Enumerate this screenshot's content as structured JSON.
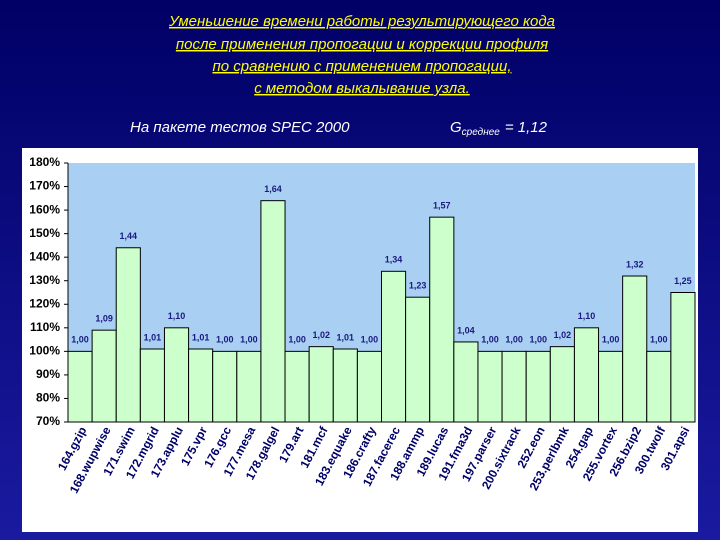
{
  "chart_data": {
    "type": "bar",
    "title": [
      "Уменьшение времени работы результирующего кода",
      "после применения пропогации и коррекции профиля",
      "по сравнению с применением пропогации,",
      "с методом выкалывание узла."
    ],
    "subtitle": "На пакете тестов SPEC 2000",
    "annotation": {
      "symbol": "G",
      "subscript": "среднее",
      "text": "= 1,12"
    },
    "categories": [
      "164.gzip",
      "168.wupwise",
      "171.swim",
      "172.mgrid",
      "173.applu",
      "175.vpr",
      "176.gcc",
      "177.mesa",
      "178.galgel",
      "179.art",
      "181.mcf",
      "183.equake",
      "186.crafty",
      "187.facerec",
      "188.ammp",
      "189.lucas",
      "191.fma3d",
      "197.parser",
      "200.sixtrack",
      "252.eon",
      "253.perlbmk",
      "254.gap",
      "255.vortex",
      "256.bzip2",
      "300.twolf",
      "301.apsi"
    ],
    "values": [
      100,
      109,
      144,
      101,
      110,
      101,
      100,
      100,
      164,
      100,
      102,
      101,
      100,
      134,
      123,
      157,
      104,
      100,
      100,
      100,
      102,
      110,
      100,
      132,
      100,
      125
    ],
    "value_labels": [
      "1,00",
      "1,09",
      "1,44",
      "1,01",
      "1,10",
      "1,01",
      "1,00",
      "1,00",
      "1,64",
      "1,00",
      "1,02",
      "1,01",
      "1,00",
      "1,34",
      "1,23",
      "1,57",
      "1,04",
      "1,00",
      "1,00",
      "1,00",
      "1,02",
      "1,10",
      "1,00",
      "1,32",
      "1,00",
      "1,25"
    ],
    "color": "#ccffcc",
    "ylim": [
      70,
      180
    ],
    "yticks": [
      {
        "value": 70,
        "label": "70%"
      },
      {
        "value": 80,
        "label": "80%"
      },
      {
        "value": 90,
        "label": "90%"
      },
      {
        "value": 100,
        "label": "100%"
      },
      {
        "value": 110,
        "label": "110%"
      },
      {
        "value": 120,
        "label": "120%"
      },
      {
        "value": 130,
        "label": "130%"
      },
      {
        "value": 140,
        "label": "140%"
      },
      {
        "value": 150,
        "label": "150%"
      },
      {
        "value": 160,
        "label": "160%"
      },
      {
        "value": 170,
        "label": "170%"
      },
      {
        "value": 180,
        "label": "180%"
      }
    ],
    "grid": false
  }
}
